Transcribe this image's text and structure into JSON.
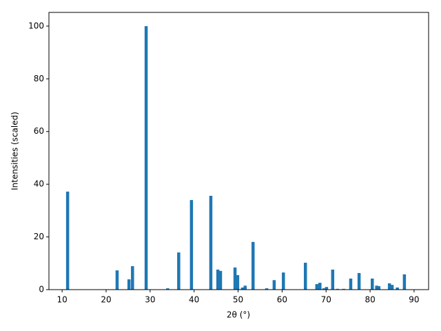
{
  "chart_data": {
    "type": "bar",
    "xlabel": "2θ (°)",
    "ylabel": "Intensities (scaled)",
    "color": "#1f77b4",
    "x": [
      11.25,
      22.5,
      25.2,
      26.0,
      29.1,
      34.0,
      36.5,
      39.4,
      43.8,
      45.4,
      46.0,
      49.3,
      49.9,
      51.0,
      51.6,
      53.4,
      56.5,
      58.2,
      60.3,
      65.3,
      67.9,
      68.6,
      69.5,
      70.1,
      71.5,
      72.6,
      74.0,
      75.6,
      77.5,
      80.5,
      81.5,
      82.0,
      84.4,
      85.0,
      86.2,
      87.8
    ],
    "values": [
      37.2,
      7.3,
      3.9,
      8.9,
      100,
      0.5,
      14.1,
      34,
      35.6,
      7.6,
      7.1,
      8.4,
      5.5,
      0.8,
      1.5,
      18.1,
      0.5,
      3.6,
      6.5,
      10.2,
      2.1,
      2.6,
      0.5,
      1.0,
      7.6,
      0.3,
      0.3,
      4.2,
      6.3,
      4.2,
      1.5,
      1.3,
      2.4,
      1.8,
      0.8,
      5.8
    ],
    "xlim": [
      7,
      93.3
    ],
    "ylim": [
      0,
      105.2
    ],
    "xticks": [
      10,
      20,
      30,
      40,
      50,
      60,
      70,
      80,
      90
    ],
    "yticks": [
      0,
      20,
      40,
      60,
      80,
      100
    ]
  }
}
